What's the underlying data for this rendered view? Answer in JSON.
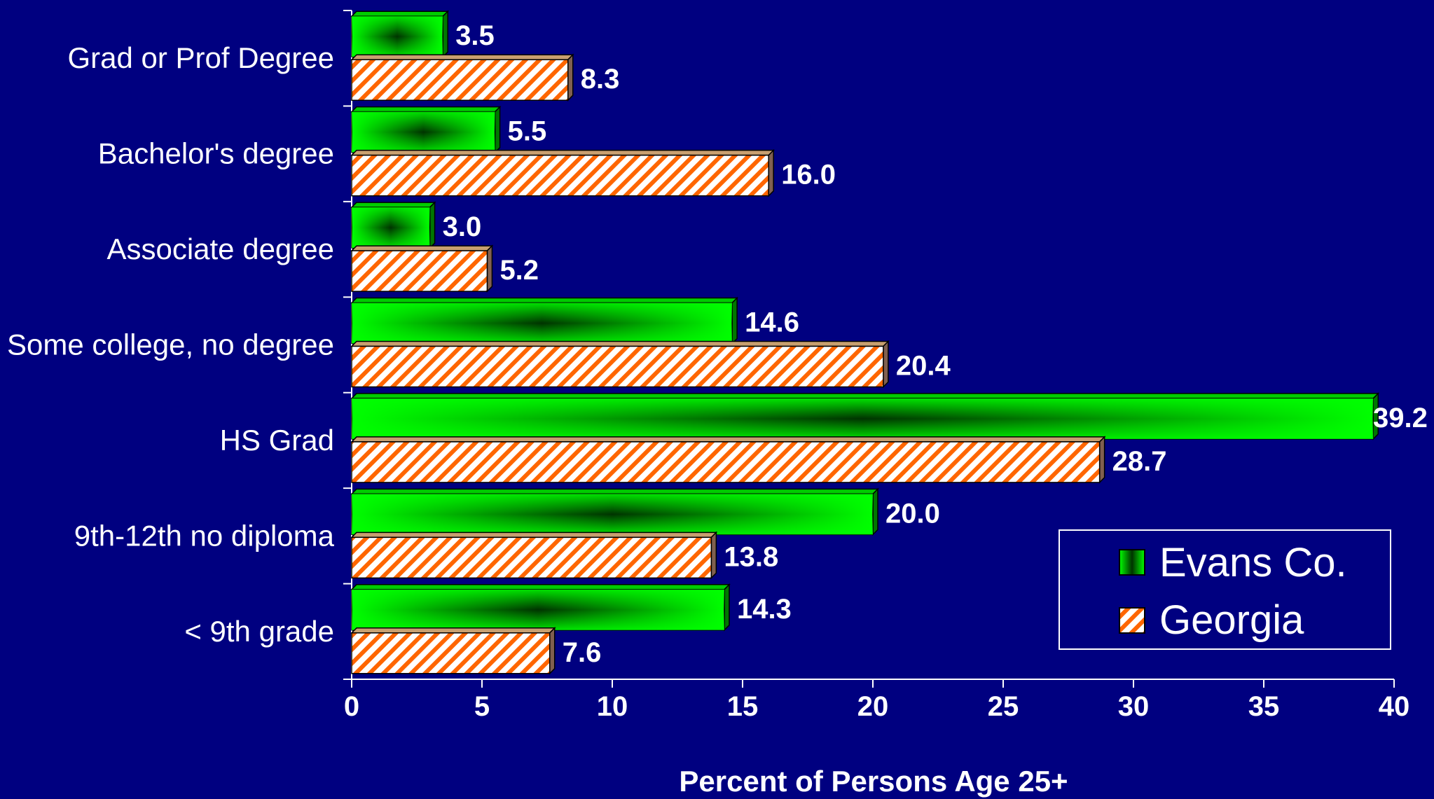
{
  "chart_data": {
    "type": "bar",
    "orientation": "horizontal",
    "categories": [
      "Grad or Prof Degree",
      "Bachelor's degree",
      "Associate degree",
      "Some college, no degree",
      "HS Grad",
      "9th-12th no diploma",
      "< 9th grade"
    ],
    "series": [
      {
        "name": "Evans Co.",
        "values": [
          3.5,
          5.5,
          3.0,
          14.6,
          39.2,
          20.0,
          14.3
        ],
        "labels": [
          "3.5",
          "5.5",
          "3.0",
          "14.6",
          "39.2",
          "20.0",
          "14.3"
        ],
        "color": "#00ff00",
        "pattern": "gradient"
      },
      {
        "name": "Georgia",
        "values": [
          8.3,
          16.0,
          5.2,
          20.4,
          28.7,
          13.8,
          7.6
        ],
        "labels": [
          "8.3",
          "16.0",
          "5.2",
          "20.4",
          "28.7",
          "13.8",
          "7.6"
        ],
        "color": "#ff6600",
        "pattern": "diagonal-stripes"
      }
    ],
    "x_ticks": [
      "0",
      "5",
      "10",
      "15",
      "20",
      "25",
      "30",
      "35",
      "40"
    ],
    "xlim": [
      0,
      40
    ],
    "xlabel": "Percent of Persons Age 25+",
    "ylabel": "",
    "grid": false,
    "legend_position": "bottom-right"
  },
  "colors": {
    "background": "#000080",
    "axis": "#ffffff",
    "evans_bar": "#00ff00",
    "evans_dark": "#000000",
    "georgia_stripe": "#ff6600",
    "georgia_bg": "#ffffff"
  }
}
